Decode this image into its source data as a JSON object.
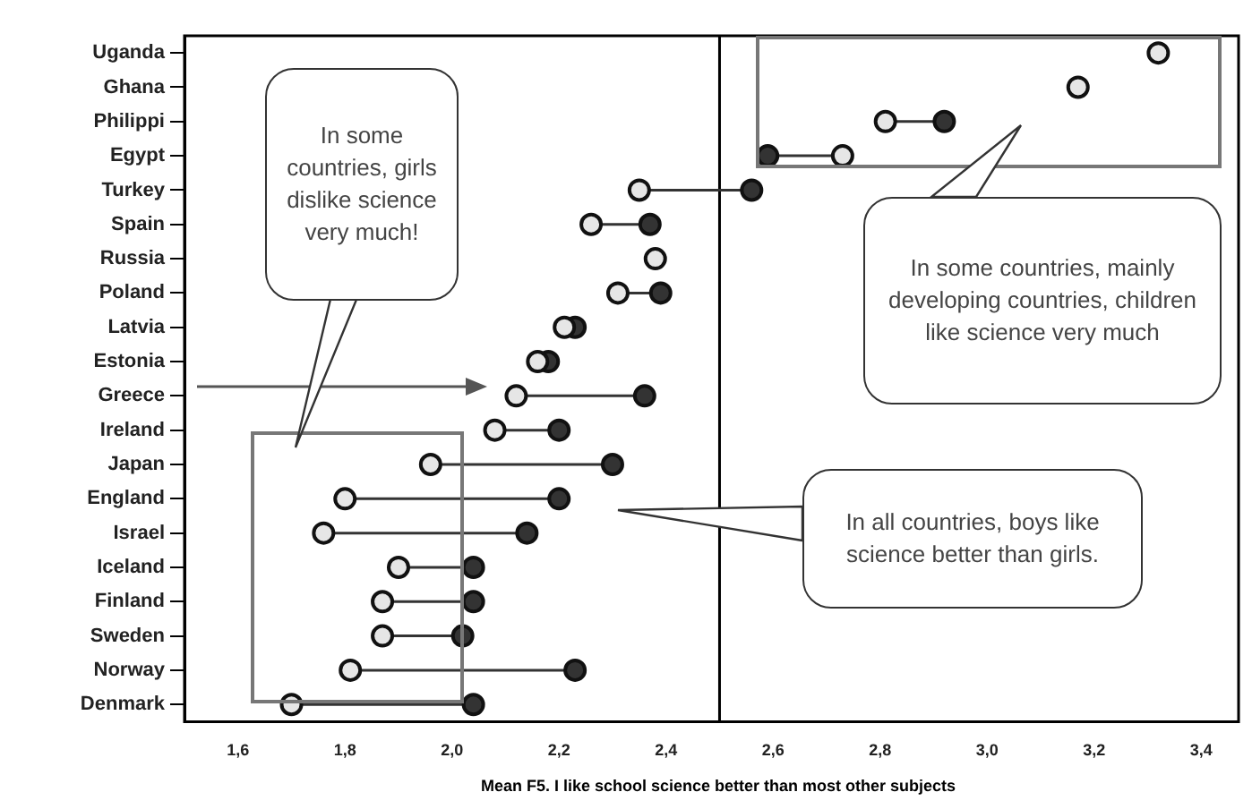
{
  "chart_data": {
    "type": "scatter",
    "xlabel": "Mean F5. I like school science better than most other subjects",
    "categories": [
      "Uganda",
      "Ghana",
      "Philippi",
      "Egypt",
      "Turkey",
      "Spain",
      "Russia",
      "Poland",
      "Latvia",
      "Estonia",
      "Greece",
      "Ireland",
      "Japan",
      "England",
      "Israel",
      "Iceland",
      "Finland",
      "Sweden",
      "Norway",
      "Denmark"
    ],
    "series": [
      {
        "color": "#e6e6e6",
        "values": [
          3.32,
          3.17,
          2.81,
          2.73,
          2.35,
          2.26,
          2.38,
          2.31,
          2.21,
          2.16,
          2.12,
          2.08,
          1.96,
          1.8,
          1.76,
          1.9,
          1.87,
          1.87,
          1.81,
          1.7
        ]
      },
      {
        "color": "#333333",
        "values": [
          null,
          null,
          2.92,
          2.59,
          2.56,
          2.37,
          null,
          2.39,
          2.23,
          2.18,
          2.36,
          2.2,
          2.3,
          2.2,
          2.14,
          2.04,
          2.04,
          2.02,
          2.23,
          2.04
        ]
      }
    ],
    "xlim": [
      1.5,
      3.47
    ],
    "xticks": [
      {
        "value": 1.6,
        "label": "1,6"
      },
      {
        "value": 1.8,
        "label": "1,8"
      },
      {
        "value": 2.0,
        "label": "2,0"
      },
      {
        "value": 2.2,
        "label": "2,2"
      },
      {
        "value": 2.4,
        "label": "2,4"
      },
      {
        "value": 2.6,
        "label": "2,6"
      },
      {
        "value": 2.8,
        "label": "2,8"
      },
      {
        "value": 3.0,
        "label": "3,0"
      },
      {
        "value": 3.2,
        "label": "3,2"
      },
      {
        "value": 3.4,
        "label": "3,4"
      }
    ],
    "ref_lines": [
      {
        "axis": "x",
        "value": 2.5,
        "color": "#000000"
      }
    ],
    "annotations": [
      "In some countries, girls dislike science very much!",
      "In some countries, mainly developing countries, children like science very much",
      "In all countries, boys like science better than girls."
    ],
    "orientation": "horizontal",
    "marker": "circle",
    "grid": false,
    "legend": false
  }
}
